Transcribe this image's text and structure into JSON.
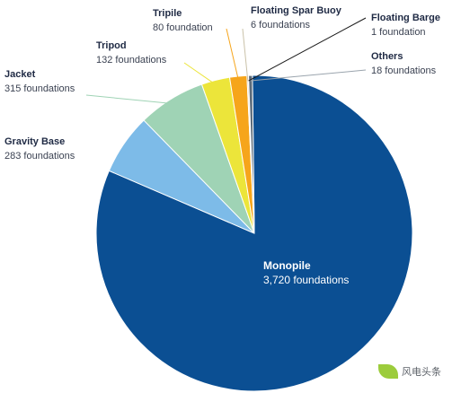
{
  "chart_data": {
    "type": "pie",
    "title": "",
    "slices": [
      {
        "label": "Monopile",
        "value": 3720,
        "count_text": "3,720 foundations",
        "color": "#0b4f93"
      },
      {
        "label": "Gravity Base",
        "value": 283,
        "count_text": "283 foundations",
        "color": "#7dbbe8"
      },
      {
        "label": "Jacket",
        "value": 315,
        "count_text": "315 foundations",
        "color": "#9fd3b5"
      },
      {
        "label": "Tripod",
        "value": 132,
        "count_text": "132 foundations",
        "color": "#ece53a"
      },
      {
        "label": "Tripile",
        "value": 80,
        "count_text": "80 foundation",
        "color": "#f6a51b"
      },
      {
        "label": "Floating Spar Buoy",
        "value": 6,
        "count_text": "6 foundations",
        "color": "#c9c1a8"
      },
      {
        "label": "Floating Barge",
        "value": 1,
        "count_text": "1 foundation",
        "color": "#1a1a1a"
      },
      {
        "label": "Others",
        "value": 18,
        "count_text": "18 foundations",
        "color": "#5c6b7a"
      }
    ]
  },
  "watermark": {
    "text": "风电头条"
  }
}
